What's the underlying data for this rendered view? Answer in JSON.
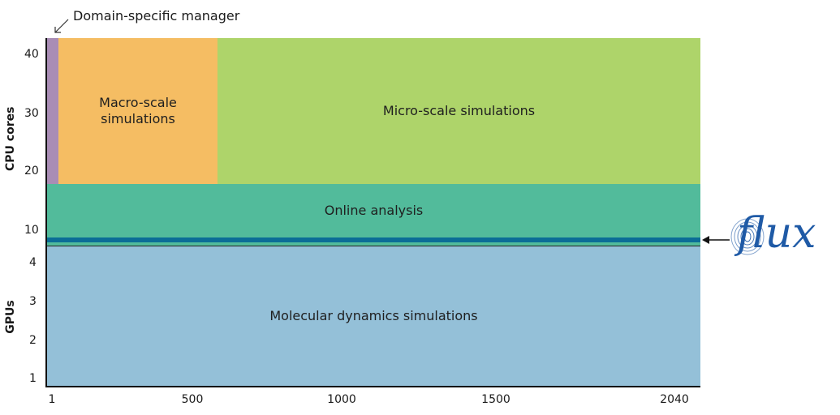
{
  "chart_data": {
    "type": "diagram",
    "y_top_label": "CPU cores",
    "y_bottom_label": "GPUs",
    "y_top_ticks": [
      "40",
      "30",
      "20",
      "10"
    ],
    "y_bottom_ticks": [
      "4",
      "3",
      "2",
      "1"
    ],
    "x_ticks": [
      "1",
      "500",
      "1000",
      "1500",
      "2040"
    ],
    "regions": {
      "domain_manager": {
        "label": "Domain-specific manager",
        "color": "#a98db5"
      },
      "macro": {
        "label_line1": "Macro-scale",
        "label_line2": "simulations",
        "color": "#f5bd63"
      },
      "micro": {
        "label": "Micro-scale simulations",
        "color": "#aed46a"
      },
      "online": {
        "label": "Online analysis",
        "color": "#52bb9b"
      },
      "flux_band": {
        "color": "#0b6d96"
      },
      "md": {
        "label": "Molecular dynamics simulations",
        "color": "#94c0d8"
      }
    },
    "flux": {
      "label": "flux",
      "color": "#1f5aa6"
    }
  }
}
